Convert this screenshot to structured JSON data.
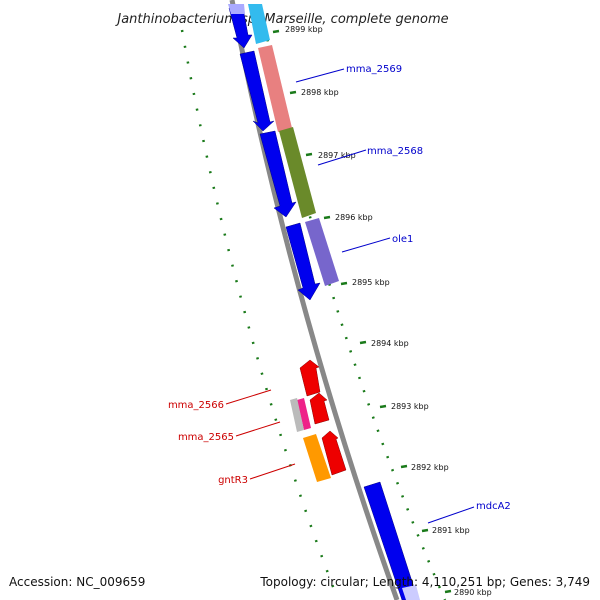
{
  "title": "Janthinobacterium sp. Marseille, complete genome",
  "footer": {
    "accession": "Accession: NC_009659",
    "summary": "Topology: circular; Length: 4,110,251 bp; Genes: 3,749"
  },
  "tick_labels": [
    "2899 kbp",
    "2898 kbp",
    "2897 kbp",
    "2896 kbp",
    "2895 kbp",
    "2894 kbp",
    "2893 kbp",
    "2892 kbp",
    "2891 kbp",
    "2890 kbp"
  ],
  "genes": [
    {
      "name": "mma_2569",
      "color": "#0000cc"
    },
    {
      "name": "mma_2568",
      "color": "#0000cc"
    },
    {
      "name": "ole1",
      "color": "#0000cc"
    },
    {
      "name": "mdcA2",
      "color": "#0000cc"
    },
    {
      "name": "mma_2566",
      "color": "#cc0000"
    },
    {
      "name": "mma_2565",
      "color": "#cc0000"
    },
    {
      "name": "gntR3",
      "color": "#cc0000"
    }
  ],
  "colors": {
    "backbone": "#888888",
    "tick": "#1a7a1a",
    "cds_forward": "#0000ee",
    "cds_reverse": "#ee0000"
  }
}
